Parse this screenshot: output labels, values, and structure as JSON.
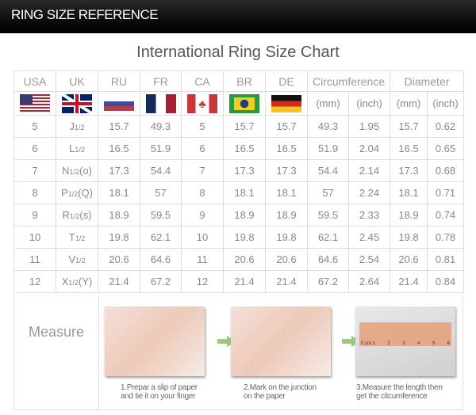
{
  "banner": "RING SIZE REFERENCE",
  "title": "International Ring Size Chart",
  "headers": [
    "USA",
    "UK",
    "RU",
    "FR",
    "CA",
    "BR",
    "DE",
    "Circumference",
    "Diameter"
  ],
  "units": [
    "(mm)",
    "(inch)",
    "(mm)",
    "(inch)"
  ],
  "flags": [
    "us-flag",
    "uk-flag",
    "russia-flag",
    "france-flag",
    "canada-flag",
    "brazil-flag",
    "germany-flag"
  ],
  "rows": [
    {
      "usa": "5",
      "uk": "J",
      "uk_frac": "1/2",
      "uk_extra": "",
      "ru": "15.7",
      "fr": "49.3",
      "ca": "5",
      "br": "15.7",
      "de": "15.7",
      "c_mm": "49.3",
      "c_in": "1.95",
      "d_mm": "15.7",
      "d_in": "0.62"
    },
    {
      "usa": "6",
      "uk": "L",
      "uk_frac": "1/2",
      "uk_extra": "",
      "ru": "16.5",
      "fr": "51.9",
      "ca": "6",
      "br": "16.5",
      "de": "16.5",
      "c_mm": "51.9",
      "c_in": "2.04",
      "d_mm": "16.5",
      "d_in": "0.65"
    },
    {
      "usa": "7",
      "uk": "N",
      "uk_frac": "1/2",
      "uk_extra": "(o)",
      "ru": "17.3",
      "fr": "54.4",
      "ca": "7",
      "br": "17.3",
      "de": "17.3",
      "c_mm": "54.4",
      "c_in": "2.14",
      "d_mm": "17.3",
      "d_in": "0.68"
    },
    {
      "usa": "8",
      "uk": "P",
      "uk_frac": "1/2",
      "uk_extra": "(Q)",
      "ru": "18.1",
      "fr": "57",
      "ca": "8",
      "br": "18.1",
      "de": "18.1",
      "c_mm": "57",
      "c_in": "2.24",
      "d_mm": "18.1",
      "d_in": "0.71"
    },
    {
      "usa": "9",
      "uk": "R",
      "uk_frac": "1/2",
      "uk_extra": "(s)",
      "ru": "18.9",
      "fr": "59.5",
      "ca": "9",
      "br": "18.9",
      "de": "18.9",
      "c_mm": "59.5",
      "c_in": "2.33",
      "d_mm": "18.9",
      "d_in": "0.74"
    },
    {
      "usa": "10",
      "uk": "T",
      "uk_frac": "1/2",
      "uk_extra": "",
      "ru": "19.8",
      "fr": "62.1",
      "ca": "10",
      "br": "19.8",
      "de": "19.8",
      "c_mm": "62.1",
      "c_in": "2.45",
      "d_mm": "19.8",
      "d_in": "0.78"
    },
    {
      "usa": "11",
      "uk": "V",
      "uk_frac": "1/2",
      "uk_extra": "",
      "ru": "20.6",
      "fr": "64.6",
      "ca": "11",
      "br": "20.6",
      "de": "20.6",
      "c_mm": "64.6",
      "c_in": "2.54",
      "d_mm": "20.6",
      "d_in": "0.81"
    },
    {
      "usa": "12",
      "uk": "X",
      "uk_frac": "1/2",
      "uk_extra": "(Y)",
      "ru": "21.4",
      "fr": "67.2",
      "ca": "12",
      "br": "21.4",
      "de": "21.4",
      "c_mm": "67.2",
      "c_in": "2.64",
      "d_mm": "21.4",
      "d_in": "0.84"
    }
  ],
  "measure": {
    "label": "Measure",
    "steps": [
      {
        "line1": "1.Prepar a slip of paper",
        "line2": "and tie it on your finger"
      },
      {
        "line1": "2.Mark on the junction",
        "line2": "on the paper"
      },
      {
        "line1": "3.Measure the length then",
        "line2": "get the citcumference"
      }
    ],
    "ruler_labels": [
      "0 cm 1",
      "2",
      "3",
      "4",
      "5",
      "6"
    ]
  }
}
